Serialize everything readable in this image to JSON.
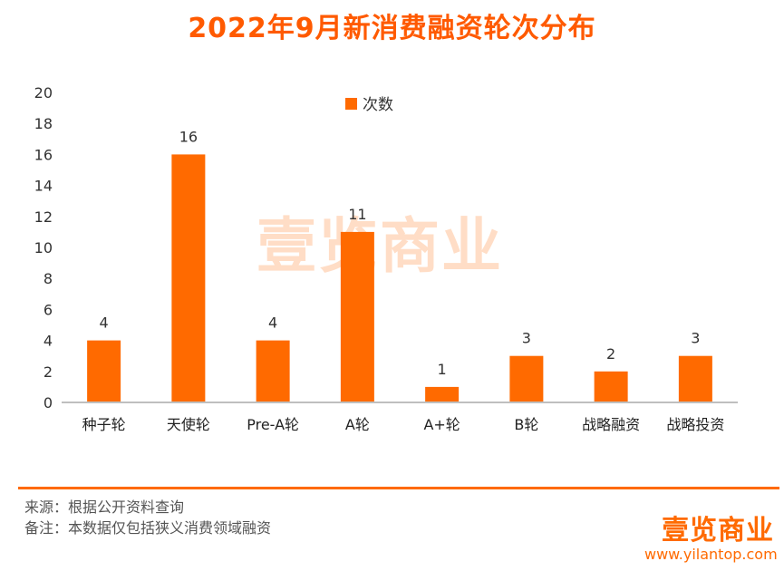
{
  "title": "2022年9月新消费融资轮次分布",
  "colors": {
    "accent": "#ff6a00",
    "axis": "#bfbfbf",
    "title": "#ff5a00"
  },
  "chart_data": {
    "type": "bar",
    "categories": [
      "种子轮",
      "天使轮",
      "Pre-A轮",
      "A轮",
      "A+轮",
      "B轮",
      "战略融资",
      "战略投资"
    ],
    "series": [
      {
        "name": "次数",
        "values": [
          4,
          16,
          4,
          11,
          1,
          3,
          2,
          3
        ]
      }
    ],
    "ylim": [
      0,
      20
    ],
    "yticks": [
      0,
      2,
      4,
      6,
      8,
      10,
      12,
      14,
      16,
      18,
      20
    ],
    "grid": false,
    "legend_position": "top-center",
    "data_labels": true
  },
  "watermark": "壹览商业",
  "footer": {
    "source": "来源：根据公开资料查询",
    "note": "备注：本数据仅包括狭义消费领域融资",
    "brand": "壹览商业",
    "url": "www.yilantop.com"
  }
}
